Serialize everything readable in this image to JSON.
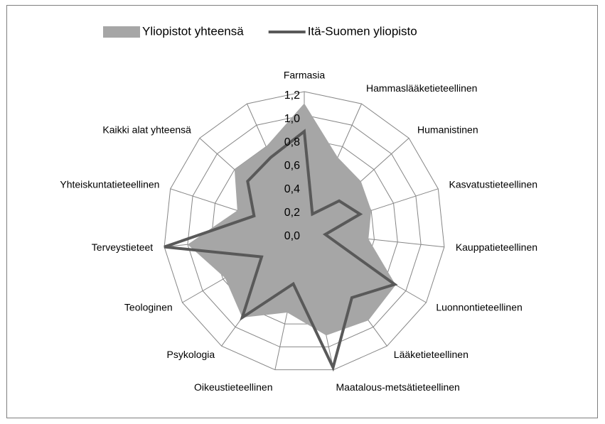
{
  "chart_data": {
    "type": "radar",
    "categories": [
      "Farmasia",
      "Hammaslääketieteellinen",
      "Humanistinen",
      "Kasvatustieteellinen",
      "Kauppatieteellinen",
      "Luonnontieteellinen",
      "Lääketieteellinen",
      "Maatalous-metsätieteellinen",
      "Oikeustieteellinen",
      "Psykologia",
      "Teologinen",
      "Terveystieteet",
      "Yhteiskuntatieteellinen",
      "Kaikki alat yhteensä",
      null
    ],
    "series": [
      {
        "name": "Yliopistot yhteensä",
        "color": "#a6a6a6",
        "fill": true,
        "values": [
          1.1,
          0.7,
          0.65,
          0.6,
          0.55,
          0.9,
          0.93,
          0.9,
          0.7,
          0.9,
          0.78,
          1.0,
          0.6,
          0.8,
          0.8
        ]
      },
      {
        "name": "Itä-Suomen yliopisto",
        "color": "#595959",
        "fill": false,
        "values": [
          0.86,
          0.17,
          0.4,
          0.5,
          0.18,
          0.89,
          0.69,
          1.18,
          0.45,
          0.9,
          0.42,
          1.2,
          0.45,
          0.65,
          0.7
        ]
      }
    ],
    "rlim": [
      0,
      1.2
    ],
    "rticks": [
      {
        "value": 0,
        "label": "0,0"
      },
      {
        "value": 0.2,
        "label": "0,2"
      },
      {
        "value": 0.4,
        "label": "0,4"
      },
      {
        "value": 0.6,
        "label": "0,6"
      },
      {
        "value": 0.8,
        "label": "0,8"
      },
      {
        "value": 1.0,
        "label": "1,0"
      },
      {
        "value": 1.2,
        "label": "1,2"
      }
    ],
    "legend": "top"
  }
}
